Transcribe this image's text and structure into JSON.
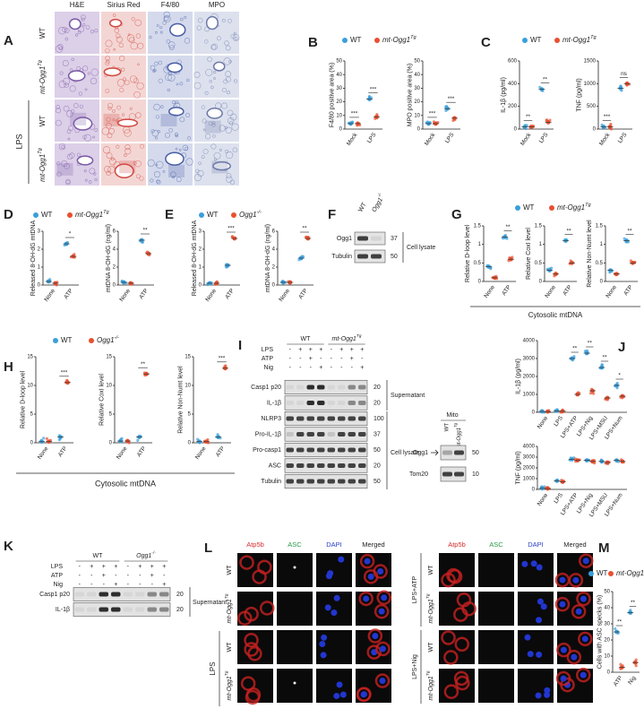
{
  "colors": [
    "#3a9fdc",
    "#e8502f"
  ],
  "A": {
    "letter": "A",
    "columns": [
      "H&E",
      "Sirius Red",
      "F4/80",
      "MPO"
    ],
    "rows": [
      "WT",
      {
        "text": "mt-Ogg1",
        "sup": "Tg"
      },
      "WT",
      {
        "text": "mt-Ogg1",
        "sup": "Tg"
      }
    ],
    "group": "LPS"
  },
  "B": {
    "letter": "B",
    "legend": [
      "WT",
      {
        "text": "mt-Ogg1",
        "sup": "Tg"
      }
    ],
    "plots": [
      {
        "ylabel": "F4/80 positive area (%)",
        "categories": [
          "Mock",
          "LPS"
        ],
        "ylim": [
          0,
          50
        ],
        "yticks": [
          0,
          10,
          20,
          30,
          40,
          50
        ],
        "values": [
          [
            4,
            22
          ],
          [
            4,
            9
          ]
        ],
        "stars": [
          "***",
          "***"
        ]
      },
      {
        "ylabel": "MPO positive area (%)",
        "categories": [
          "Mock",
          "LPS"
        ],
        "ylim": [
          0,
          50
        ],
        "yticks": [
          0,
          10,
          20,
          30,
          40,
          50
        ],
        "values": [
          [
            4,
            15
          ],
          [
            4,
            8
          ]
        ],
        "stars": [
          "***",
          "***"
        ]
      }
    ]
  },
  "C": {
    "letter": "C",
    "legend": [
      "WT",
      {
        "text": "mt-Ogg1",
        "sup": "Tg"
      }
    ],
    "plots": [
      {
        "ylabel": "IL-1β (pg/ml)",
        "categories": [
          "Mock",
          "LPS"
        ],
        "ylim": [
          0,
          600
        ],
        "yticks": [
          0,
          200,
          400,
          600
        ],
        "values": [
          [
            20,
            350
          ],
          [
            20,
            60
          ]
        ],
        "stars": [
          "**",
          "**"
        ]
      },
      {
        "ylabel": "TNF (pg/ml)",
        "categories": [
          "Mock",
          "LPS"
        ],
        "ylim": [
          0,
          1500
        ],
        "yticks": [
          0,
          500,
          1000,
          1500
        ],
        "values": [
          [
            50,
            900
          ],
          [
            50,
            1000
          ]
        ],
        "stars": [
          "***",
          "ns"
        ]
      }
    ]
  },
  "D": {
    "letter": "D",
    "legend": [
      "WT",
      {
        "text": "mt-Ogg1",
        "sup": "Tg"
      }
    ],
    "plots": [
      {
        "ylabel": "Released 8-OH-dG mtDNA",
        "categories": [
          "None",
          "ATP"
        ],
        "ylim": [
          0,
          3
        ],
        "yticks": [
          0,
          1,
          2,
          3
        ],
        "values": [
          [
            0.2,
            2.3
          ],
          [
            0.1,
            1.6
          ]
        ],
        "stars": [
          null,
          "*"
        ]
      },
      {
        "ylabel": "mtDNA 8-OH-dG (ng/ml)",
        "categories": [
          "None",
          "ATP"
        ],
        "ylim": [
          0,
          6
        ],
        "yticks": [
          0,
          2,
          4,
          6
        ],
        "values": [
          [
            0.3,
            5
          ],
          [
            0.2,
            3.5
          ]
        ],
        "stars": [
          null,
          "**"
        ]
      }
    ]
  },
  "E": {
    "letter": "E",
    "legend": [
      "WT",
      {
        "text": "Ogg1",
        "sup": "-/-"
      }
    ],
    "plots": [
      {
        "ylabel": "Released 8-OH-dG mtDNA",
        "categories": [
          "None",
          "ATP"
        ],
        "ylim": [
          0,
          3
        ],
        "yticks": [
          0,
          1,
          2,
          3
        ],
        "values": [
          [
            0.1,
            1.1
          ],
          [
            0.1,
            2.6
          ]
        ],
        "stars": [
          null,
          "***"
        ]
      },
      {
        "ylabel": "mtDNA 8-OH-dG (ng/ml)",
        "categories": [
          "None",
          "ATP"
        ],
        "ylim": [
          0,
          6
        ],
        "yticks": [
          0,
          2,
          4,
          6
        ],
        "values": [
          [
            0.3,
            3
          ],
          [
            0.3,
            5.2
          ]
        ],
        "stars": [
          null,
          "**"
        ]
      }
    ]
  },
  "F": {
    "letter": "F",
    "lanes": [
      "WT",
      {
        "text": "Ogg1",
        "sup": "-/-"
      }
    ],
    "bands": [
      {
        "name": "Ogg1",
        "marker": 37
      },
      {
        "name": "Tubulin",
        "marker": 50
      }
    ],
    "fraction": "Cell lysate"
  },
  "G": {
    "letter": "G",
    "legend": [
      "WT",
      {
        "text": "mt-Ogg1",
        "sup": "Tg"
      }
    ],
    "xlabel": "Cytosolic mtDNA",
    "plots": [
      {
        "ylabel": "Relative D-loop level",
        "categories": [
          "None",
          "ATP"
        ],
        "ylim": [
          0,
          1.5
        ],
        "yticks": [
          0,
          0.5,
          1,
          1.5
        ],
        "values": [
          [
            0.4,
            1.2
          ],
          [
            0.1,
            0.6
          ]
        ],
        "stars": [
          null,
          "**"
        ]
      },
      {
        "ylabel": "Relative CoxI level",
        "categories": [
          "None",
          "ATP"
        ],
        "ylim": [
          0,
          1.5
        ],
        "yticks": [
          0,
          0.5,
          1,
          1.5
        ],
        "values": [
          [
            0.3,
            1.1
          ],
          [
            0.2,
            0.5
          ]
        ],
        "stars": [
          null,
          "**"
        ]
      },
      {
        "ylabel": "Relative Non-Numt level",
        "categories": [
          "None",
          "ATP"
        ],
        "ylim": [
          0,
          1.5
        ],
        "yticks": [
          0,
          0.5,
          1,
          1.5
        ],
        "values": [
          [
            0.3,
            1.1
          ],
          [
            0.2,
            0.5
          ]
        ],
        "stars": [
          null,
          "**"
        ]
      }
    ]
  },
  "H": {
    "letter": "H",
    "legend": [
      "WT",
      {
        "text": "Ogg1",
        "sup": "-/-"
      }
    ],
    "xlabel": "Cytosolic mtDNA",
    "plots": [
      {
        "ylabel": "Relative D-loop level",
        "categories": [
          "None",
          "ATP"
        ],
        "ylim": [
          0,
          15
        ],
        "yticks": [
          0,
          5,
          10,
          15
        ],
        "values": [
          [
            0.2,
            1
          ],
          [
            0.2,
            10.5
          ]
        ],
        "stars": [
          null,
          "***"
        ]
      },
      {
        "ylabel": "Relative CoxI level",
        "categories": [
          "None",
          "ATP"
        ],
        "ylim": [
          0,
          15
        ],
        "yticks": [
          0,
          5,
          10,
          15
        ],
        "values": [
          [
            0.3,
            1
          ],
          [
            0.3,
            12
          ]
        ],
        "stars": [
          null,
          "**"
        ]
      },
      {
        "ylabel": "Relative Non-Numt level",
        "categories": [
          "None",
          "ATP"
        ],
        "ylim": [
          0,
          15
        ],
        "yticks": [
          0,
          5,
          10,
          15
        ],
        "values": [
          [
            0.2,
            1
          ],
          [
            0.2,
            13
          ]
        ],
        "stars": [
          null,
          "***"
        ]
      }
    ]
  },
  "I": {
    "letter": "I",
    "groups": [
      "WT",
      {
        "text": "mt-Ogg1",
        "sup": "Tg"
      }
    ],
    "treatments": [
      {
        "name": "LPS",
        "signs": [
          "-",
          "+",
          "+",
          "+",
          "-",
          "+",
          "+",
          "+"
        ]
      },
      {
        "name": "ATP",
        "signs": [
          "-",
          "-",
          "+",
          "-",
          "-",
          "-",
          "+",
          "-"
        ]
      },
      {
        "name": "Nig",
        "signs": [
          "-",
          "-",
          "-",
          "+",
          "-",
          "-",
          "-",
          "+"
        ]
      }
    ],
    "bands": [
      {
        "name": "Casp1 p20",
        "marker": 20
      },
      {
        "name": "IL-1β",
        "marker": 20
      },
      {
        "name": "NLRP3",
        "marker": 100
      },
      {
        "name": "Pro-IL-1β",
        "marker": 37
      },
      {
        "name": "Pro-casp1",
        "marker": 50
      },
      {
        "name": "ASC",
        "marker": 20
      },
      {
        "name": "Tubulin",
        "marker": 50
      }
    ],
    "fractions": [
      "Supernatant",
      "Cell lysate"
    ]
  },
  "Mito": {
    "title": "Mito",
    "lanes": [
      "WT",
      {
        "text": "mt-Ogg1",
        "sup": "Tg"
      }
    ],
    "bands": [
      {
        "name": "Ogg1",
        "marker": 50
      },
      {
        "name": "Tom20",
        "marker": 10
      }
    ]
  },
  "J": {
    "letter": "J",
    "plots": [
      {
        "ylabel": "IL-1β (pg/ml)",
        "categories": [
          "None",
          "LPS",
          "LPS+ATP",
          "LPS+Nig",
          "LPS+MSU",
          "LPS+Num"
        ],
        "ylim": [
          0,
          4000
        ],
        "yticks": [
          0,
          1000,
          2000,
          3000,
          4000
        ],
        "values": [
          [
            50,
            80,
            3000,
            3300,
            2500,
            1500
          ],
          [
            40,
            60,
            1000,
            1200,
            800,
            900
          ]
        ],
        "stars": [
          null,
          null,
          "**",
          "**",
          "**",
          "*"
        ]
      },
      {
        "ylabel": "TNF (pg/ml)",
        "categories": [
          "None",
          "LPS",
          "LPS+ATP",
          "LPS+Nig",
          "LPS+MSU",
          "LPS+Num"
        ],
        "ylim": [
          0,
          4000
        ],
        "yticks": [
          0,
          1000,
          2000,
          3000,
          4000
        ],
        "values": [
          [
            100,
            800,
            2800,
            2700,
            2600,
            2700
          ],
          [
            80,
            700,
            2700,
            2600,
            2500,
            2600
          ]
        ],
        "stars": [
          null,
          null,
          null,
          null,
          null,
          null
        ]
      }
    ]
  },
  "K": {
    "letter": "K",
    "groups": [
      "WT",
      {
        "text": "Ogg1",
        "sup": "-/-"
      }
    ],
    "treatments": [
      {
        "name": "LPS",
        "signs": [
          "-",
          "+",
          "+",
          "+",
          "-",
          "+",
          "+",
          "+"
        ]
      },
      {
        "name": "ATP",
        "signs": [
          "-",
          "-",
          "+",
          "-",
          "-",
          "-",
          "+",
          "-"
        ]
      },
      {
        "name": "Nig",
        "signs": [
          "-",
          "-",
          "-",
          "+",
          "-",
          "-",
          "-",
          "+"
        ]
      }
    ],
    "bands": [
      {
        "name": "Casp1 p20",
        "marker": 20
      },
      {
        "name": "IL-1β",
        "marker": 20
      }
    ],
    "fraction": "Supernatant"
  },
  "L": {
    "letter": "L",
    "columns": [
      "Atp5b",
      "ASC",
      "DAPI",
      "Merged"
    ],
    "rows": [
      "WT",
      {
        "text": "mt-Ogg1",
        "sup": "Tg"
      },
      "WT",
      {
        "text": "mt-Ogg1",
        "sup": "Tg"
      }
    ],
    "left_group": "LPS",
    "right_groups": [
      "LPS+ATP",
      "LPS+Nig"
    ]
  },
  "M": {
    "letter": "M",
    "legend": [
      "WT",
      {
        "text": "mt-Ogg1",
        "sup": "Tg"
      }
    ],
    "plot": {
      "ylabel": "Cells with ASC specks (%)",
      "categories": [
        "ATP",
        "Nig"
      ],
      "ylim": [
        0,
        50
      ],
      "yticks": [
        0,
        10,
        20,
        30,
        40,
        50
      ],
      "values": [
        [
          25,
          37
        ],
        [
          3,
          6
        ]
      ],
      "stars": [
        "**",
        "**"
      ]
    }
  }
}
